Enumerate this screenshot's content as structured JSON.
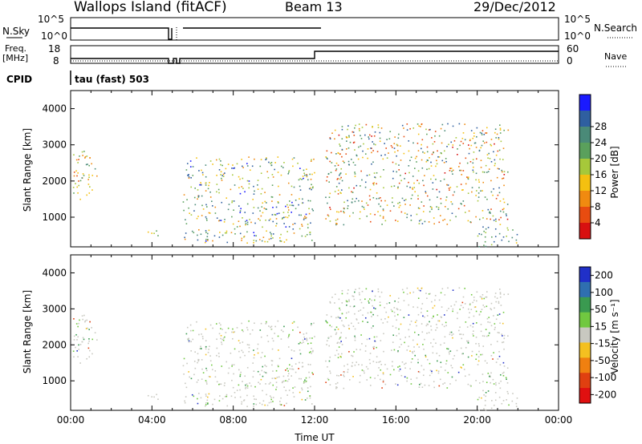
{
  "header": {
    "station": "Wallops Island (fitACF)",
    "beam": "Beam 13",
    "date": "29/Dec/2012"
  },
  "top_panels": {
    "nsky_label": "N.Sky",
    "nsky_ticks": [
      "10^5",
      "10^0"
    ],
    "nsearch_label": "N.Search",
    "nsearch_ticks": [
      "10^5",
      "10^0"
    ],
    "freq_label": "Freq.",
    "freq_unit": "[MHz]",
    "freq_ticks": [
      "18",
      "8"
    ],
    "nave_label": "Nave",
    "nave_ticks": [
      "60",
      "0"
    ],
    "cpid_label": "CPID",
    "cpid_text": "tau (fast) 503"
  },
  "chart_data": [
    {
      "type": "heatmap",
      "name": "power",
      "ylabel": "Slant Range [km]",
      "xlabel": "",
      "xlim_hours": [
        0,
        24
      ],
      "ylim_km": [
        180,
        4500
      ],
      "yticks": [
        "1000",
        "2000",
        "3000",
        "4000"
      ],
      "colorbar": {
        "label": "Power [dB]",
        "ticks": [
          "4",
          "8",
          "12",
          "16",
          "20",
          "24",
          "28"
        ],
        "colors": [
          "#1a1aff",
          "#2f5fa0",
          "#4a8a78",
          "#5aa05c",
          "#a6c83a",
          "#f4c010",
          "#f08a10",
          "#e84c10",
          "#d81010"
        ]
      },
      "echo_regions": [
        {
          "t": [
            0.0,
            1.3
          ],
          "range_km": [
            1500,
            2900
          ],
          "power_db": [
            10,
            26
          ]
        },
        {
          "t": [
            3.5,
            4.5
          ],
          "range_km": [
            500,
            700
          ],
          "power_db": [
            12,
            22
          ]
        },
        {
          "t": [
            5.5,
            12.0
          ],
          "range_km": [
            300,
            2700
          ],
          "power_db": [
            4,
            24
          ]
        },
        {
          "t": [
            12.5,
            21.5
          ],
          "range_km": [
            800,
            3600
          ],
          "power_db": [
            6,
            28
          ]
        },
        {
          "t": [
            20.0,
            22.0
          ],
          "range_km": [
            200,
            800
          ],
          "power_db": [
            4,
            20
          ]
        }
      ]
    },
    {
      "type": "heatmap",
      "name": "velocity",
      "ylabel": "Slant Range [km]",
      "xlabel": "Time UT",
      "xlim_hours": [
        0,
        24
      ],
      "ylim_km": [
        180,
        4500
      ],
      "yticks": [
        "1000",
        "2000",
        "3000",
        "4000"
      ],
      "xticks": [
        "00:00",
        "04:00",
        "08:00",
        "12:00",
        "16:00",
        "20:00",
        "00:00"
      ],
      "colorbar": {
        "label": "Velocity [m s⁻¹]",
        "ticks": [
          "200",
          "100",
          "50",
          "15",
          "-15",
          "-50",
          "-100",
          "-200"
        ],
        "colors": [
          "#2030c8",
          "#2f6fb0",
          "#3a9a50",
          "#70c840",
          "#c8c8c0",
          "#f4c020",
          "#f08010",
          "#e04010",
          "#e01010"
        ]
      }
    }
  ]
}
